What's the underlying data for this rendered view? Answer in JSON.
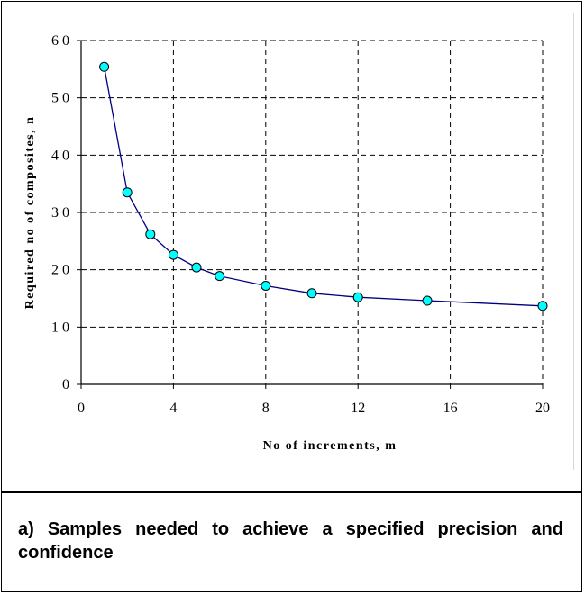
{
  "caption": "a) Samples needed to achieve a specified precision and confidence",
  "chart_data": {
    "type": "line",
    "title": "",
    "xlabel": "No of increments, m",
    "ylabel": "Required no of composites, n",
    "xlim": [
      0,
      20
    ],
    "ylim": [
      0,
      60
    ],
    "x_ticks": [
      0,
      4,
      8,
      12,
      16,
      20
    ],
    "y_ticks": [
      0,
      10,
      20,
      30,
      40,
      50,
      60
    ],
    "x_tick_labels": [
      "0",
      "4",
      "8",
      "12",
      "16",
      "20"
    ],
    "y_tick_labels": [
      "0",
      "1 0",
      "2 0",
      "3 0",
      "4 0",
      "5 0",
      "6 0"
    ],
    "grid": true,
    "series": [
      {
        "x": [
          1,
          2,
          3,
          4,
          5,
          6,
          8,
          10,
          12,
          15,
          20
        ],
        "y": [
          55.4,
          33.5,
          26.2,
          22.6,
          20.4,
          18.9,
          17.2,
          15.9,
          15.2,
          14.6,
          13.7
        ],
        "color": "#000080",
        "marker_color": "#00ffff"
      }
    ]
  }
}
